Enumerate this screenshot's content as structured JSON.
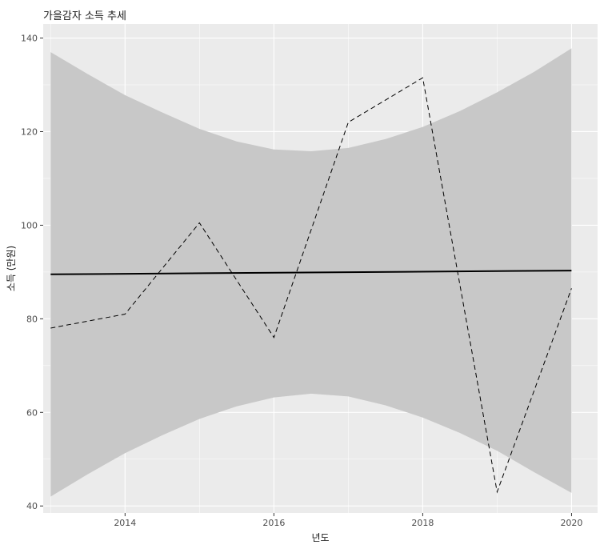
{
  "chart_data": {
    "type": "line",
    "title": "가을감자 소득 추세",
    "xlabel": "년도",
    "ylabel": "소득 (만원)",
    "xlim": [
      2012.9,
      2020.35
    ],
    "ylim": [
      38.5,
      143
    ],
    "x_ticks": [
      2014,
      2016,
      2018,
      2020
    ],
    "y_ticks": [
      40,
      60,
      80,
      100,
      120,
      140
    ],
    "grid": true,
    "series": [
      {
        "style": "dashed",
        "x": [
          2013,
          2014,
          2015,
          2016,
          2017,
          2018,
          2019,
          2020
        ],
        "y": [
          78,
          81,
          100.5,
          76,
          122,
          131.5,
          43,
          86.5
        ]
      },
      {
        "style": "solid",
        "x": [
          2013,
          2020
        ],
        "y": [
          89.5,
          90.3
        ]
      }
    ],
    "confidence_band": {
      "x": [
        2013,
        2013.5,
        2014,
        2014.5,
        2015,
        2015.5,
        2016,
        2016.5,
        2017,
        2017.5,
        2018,
        2018.5,
        2019,
        2019.5,
        2020
      ],
      "lower": [
        42,
        46.8,
        51.3,
        55.1,
        58.6,
        61.3,
        63.2,
        64,
        63.4,
        61.5,
        58.9,
        55.6,
        51.8,
        47.2,
        42.8
      ],
      "upper": [
        137,
        132.3,
        127.8,
        124.1,
        120.6,
        117.9,
        116.2,
        115.8,
        116.5,
        118.4,
        121,
        124.4,
        128.4,
        132.8,
        137.8
      ]
    },
    "colors": {
      "panel": "#ebebeb",
      "grid": "#ffffff",
      "band": "#c8c8c8",
      "line": "#000000"
    }
  }
}
